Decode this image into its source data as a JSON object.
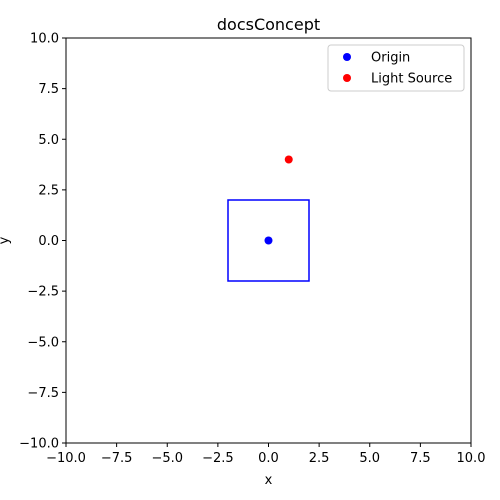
{
  "chart_data": {
    "type": "scatter",
    "title": "docsConcept",
    "xlabel": "x",
    "ylabel": "y",
    "xlim": [
      -10,
      10
    ],
    "ylim": [
      -10,
      10
    ],
    "grid": false,
    "legend_position": "top-right",
    "xticks": [
      -10,
      -7.5,
      -5,
      -2.5,
      0,
      2.5,
      5,
      7.5,
      10
    ],
    "yticks": [
      -10,
      -7.5,
      -5,
      -2.5,
      0,
      2.5,
      5,
      7.5,
      10
    ],
    "xtick_labels": [
      "−10.0",
      "−7.5",
      "−5.0",
      "−2.5",
      "0.0",
      "2.5",
      "5.0",
      "7.5",
      "10.0"
    ],
    "ytick_labels": [
      "−10.0",
      "−7.5",
      "−5.0",
      "−2.5",
      "0.0",
      "2.5",
      "5.0",
      "7.5",
      "10.0"
    ],
    "series": [
      {
        "name": "Origin",
        "color": "#0000ff",
        "points": [
          [
            0,
            0
          ]
        ]
      },
      {
        "name": "Light Source",
        "color": "#ff0000",
        "points": [
          [
            1,
            4
          ]
        ]
      }
    ],
    "shapes": [
      {
        "type": "rectangle",
        "x": [
          -2,
          2
        ],
        "y": [
          -2,
          2
        ],
        "color": "#0000ff"
      }
    ]
  }
}
